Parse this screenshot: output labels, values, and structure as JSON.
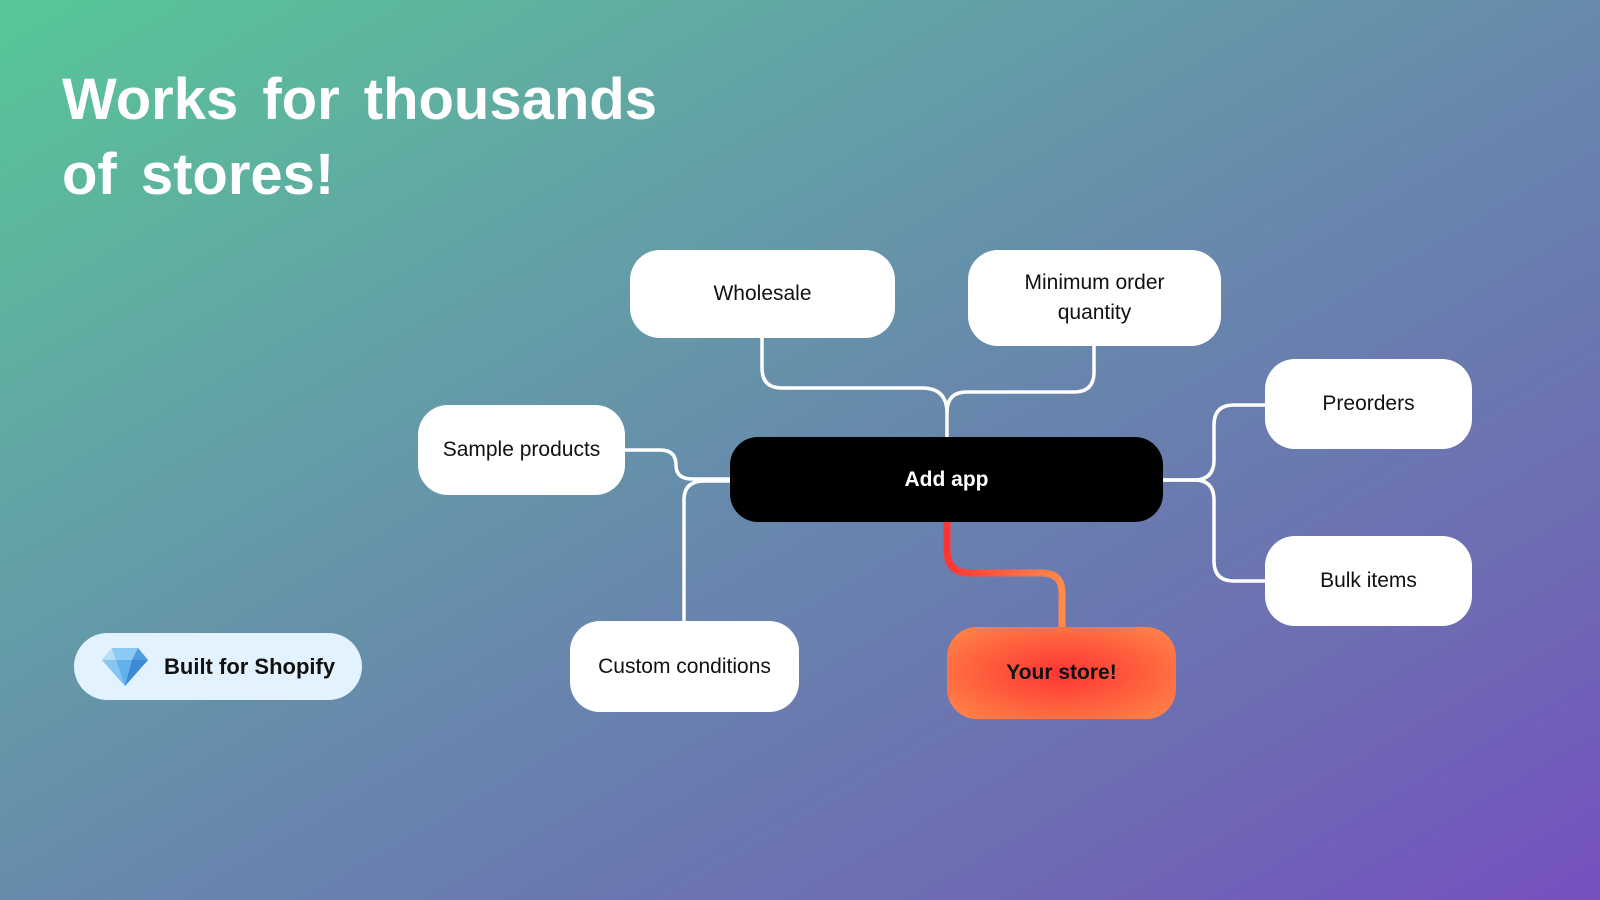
{
  "title": {
    "line1": "Works for thousands",
    "line2": "of stores!"
  },
  "center": {
    "label": "Add app"
  },
  "nodes": {
    "wholesale": "Wholesale",
    "minimum_order": "Minimum order quantity",
    "preorders": "Preorders",
    "bulk_items": "Bulk items",
    "sample_products": "Sample products",
    "custom_conditions": "Custom conditions",
    "your_store": "Your store!"
  },
  "badge": {
    "label": "Built for Shopify",
    "icon": "diamond-icon"
  },
  "colors": {
    "center": "#000000",
    "highlight": "#ff3b35",
    "badge_bg": "#e3f2ff"
  }
}
